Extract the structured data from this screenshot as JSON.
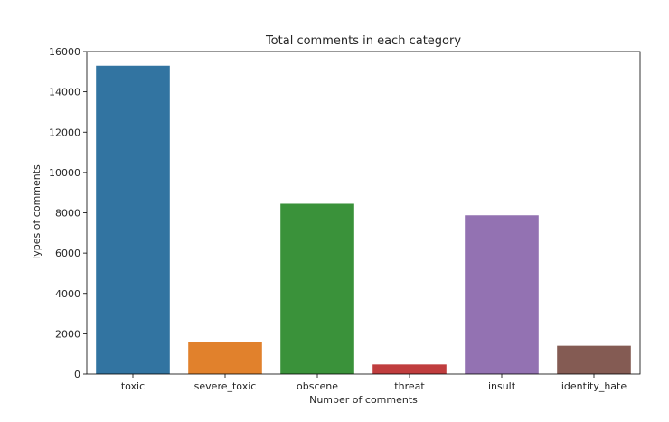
{
  "chart_data": {
    "type": "bar",
    "title": "Total comments in each category",
    "xlabel": "Number of comments",
    "ylabel": "Types of comments",
    "categories": [
      "toxic",
      "severe_toxic",
      "obscene",
      "threat",
      "insult",
      "identity_hate"
    ],
    "values": [
      15294,
      1595,
      8449,
      478,
      7877,
      1405
    ],
    "colors": [
      "#3274a1",
      "#e1812c",
      "#3a923a",
      "#c03d3e",
      "#9372b2",
      "#845b53"
    ],
    "ylim": [
      0,
      16000
    ],
    "yticks": [
      0,
      2000,
      4000,
      6000,
      8000,
      10000,
      12000,
      14000,
      16000
    ],
    "grid": false,
    "legend": "none"
  }
}
